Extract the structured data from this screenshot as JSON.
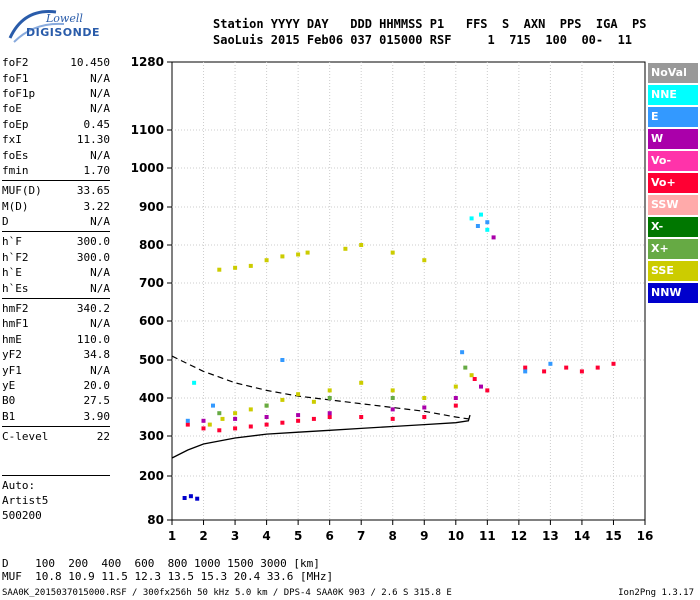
{
  "logo": {
    "top": "Lowell",
    "bottom": "DIGISONDE"
  },
  "header": {
    "line1": "Station YYYY DAY   DDD HHMMSS P1   FFS  S  AXN  PPS  IGA  PS",
    "line2": "SaoLuis 2015 Feb06 037 015000 RSF     1  715  100  00-  11"
  },
  "params": [
    {
      "name": "foF2",
      "value": "10.450"
    },
    {
      "name": "foF1",
      "value": "N/A"
    },
    {
      "name": "foF1p",
      "value": "N/A"
    },
    {
      "name": "foE",
      "value": "N/A"
    },
    {
      "name": "foEp",
      "value": "0.45"
    },
    {
      "name": "fxI",
      "value": "11.30"
    },
    {
      "name": "foEs",
      "value": "N/A"
    },
    {
      "name": "fmin",
      "value": "1.70"
    },
    {
      "name": "MUF(D)",
      "value": "33.65",
      "sep": true
    },
    {
      "name": "M(D)",
      "value": "3.22"
    },
    {
      "name": "D",
      "value": "N/A"
    },
    {
      "name": "h`F",
      "value": "300.0",
      "sep": true
    },
    {
      "name": "h`F2",
      "value": "300.0"
    },
    {
      "name": "h`E",
      "value": "N/A"
    },
    {
      "name": "h`Es",
      "value": "N/A"
    },
    {
      "name": "hmF2",
      "value": "340.2",
      "sep": true
    },
    {
      "name": "hmF1",
      "value": "N/A"
    },
    {
      "name": "hmE",
      "value": "110.0"
    },
    {
      "name": "yF2",
      "value": "34.8"
    },
    {
      "name": "yF1",
      "value": "N/A"
    },
    {
      "name": "yE",
      "value": "20.0"
    },
    {
      "name": "B0",
      "value": "27.5"
    },
    {
      "name": "B1",
      "value": "3.90"
    },
    {
      "name": "C-level",
      "value": "22",
      "sep": true
    }
  ],
  "auto": {
    "line1": "Auto:",
    "line2": "Artist5",
    "line3": "500200"
  },
  "legend": [
    {
      "label": "NoVal",
      "color": "#999999"
    },
    {
      "label": "NNE",
      "color": "#00ffff"
    },
    {
      "label": "E",
      "color": "#3399ff"
    },
    {
      "label": "W",
      "color": "#aa00aa"
    },
    {
      "label": "Vo-",
      "color": "#ff33aa"
    },
    {
      "label": "Vo+",
      "color": "#ff0033"
    },
    {
      "label": "SSW",
      "color": "#ffaaaa"
    },
    {
      "label": "X-",
      "color": "#007700"
    },
    {
      "label": "X+",
      "color": "#66aa44"
    },
    {
      "label": "SSE",
      "color": "#cccc00"
    },
    {
      "label": "NNW",
      "color": "#0000cc"
    }
  ],
  "footer": {
    "line1": "D    100  200  400  600  800 1000 1500 3000 [km]",
    "line2": "MUF  10.8 10.9 11.5 12.3 13.5 15.3 20.4 33.6 [MHz]",
    "line3": "SAA0K_2015037015000.RSF / 300fx256h 50 kHz 5.0 km / DPS-4 SAA0K 903 / 2.6 S 315.8 E",
    "version": "Ion2Png 1.3.17"
  },
  "chart_data": {
    "type": "scatter",
    "x_ticks": [
      1,
      2,
      3,
      4,
      5,
      6,
      7,
      8,
      9,
      10,
      11,
      12,
      13,
      14,
      15,
      16
    ],
    "y_ticks": [
      80,
      200,
      300,
      400,
      500,
      600,
      700,
      800,
      900,
      1000,
      1100,
      1280
    ],
    "xlim": [
      1,
      16
    ],
    "ylim": [
      80,
      1280
    ],
    "grid": true,
    "series": [
      {
        "name": "SSE",
        "color": "#cccc00",
        "points": [
          [
            2.2,
            330
          ],
          [
            2.6,
            345
          ],
          [
            3.0,
            360
          ],
          [
            3.5,
            370
          ],
          [
            4.0,
            380
          ],
          [
            4.5,
            395
          ],
          [
            5.0,
            410
          ],
          [
            5.5,
            390
          ],
          [
            6.0,
            420
          ],
          [
            7.0,
            440
          ],
          [
            8.0,
            420
          ],
          [
            9.0,
            400
          ],
          [
            10.0,
            430
          ],
          [
            10.5,
            460
          ],
          [
            2.5,
            735
          ],
          [
            3.0,
            740
          ],
          [
            3.5,
            745
          ],
          [
            4.0,
            760
          ],
          [
            4.5,
            770
          ],
          [
            5.0,
            775
          ],
          [
            5.3,
            780
          ],
          [
            6.5,
            790
          ],
          [
            7.0,
            800
          ],
          [
            8.0,
            780
          ],
          [
            9.0,
            760
          ]
        ]
      },
      {
        "name": "Vo+",
        "color": "#ff0033",
        "points": [
          [
            1.5,
            330
          ],
          [
            2.0,
            320
          ],
          [
            2.5,
            315
          ],
          [
            3.0,
            320
          ],
          [
            3.5,
            325
          ],
          [
            4.0,
            330
          ],
          [
            4.5,
            335
          ],
          [
            5.0,
            340
          ],
          [
            5.5,
            345
          ],
          [
            6.0,
            350
          ],
          [
            7.0,
            350
          ],
          [
            8.0,
            345
          ],
          [
            9.0,
            350
          ],
          [
            10.0,
            380
          ],
          [
            10.6,
            450
          ],
          [
            11.0,
            420
          ],
          [
            12.2,
            480
          ],
          [
            12.8,
            470
          ],
          [
            13.5,
            480
          ],
          [
            14.0,
            470
          ],
          [
            14.5,
            480
          ],
          [
            15.0,
            490
          ]
        ]
      },
      {
        "name": "W",
        "color": "#aa00aa",
        "points": [
          [
            2.0,
            340
          ],
          [
            3.0,
            345
          ],
          [
            4.0,
            350
          ],
          [
            5.0,
            355
          ],
          [
            6.0,
            360
          ],
          [
            8.0,
            370
          ],
          [
            9.0,
            375
          ],
          [
            10.0,
            400
          ],
          [
            10.8,
            430
          ],
          [
            11.2,
            820
          ]
        ]
      },
      {
        "name": "E",
        "color": "#3399ff",
        "points": [
          [
            1.5,
            340
          ],
          [
            2.3,
            380
          ],
          [
            4.5,
            500
          ],
          [
            10.2,
            520
          ],
          [
            10.7,
            850
          ],
          [
            11.0,
            860
          ],
          [
            12.2,
            470
          ],
          [
            13.0,
            490
          ]
        ]
      },
      {
        "name": "NNE",
        "color": "#00ffff",
        "points": [
          [
            10.5,
            870
          ],
          [
            10.8,
            880
          ],
          [
            11.0,
            840
          ],
          [
            1.7,
            440
          ]
        ]
      },
      {
        "name": "NNW",
        "color": "#0000cc",
        "points": [
          [
            1.4,
            140
          ],
          [
            1.6,
            145
          ],
          [
            1.8,
            138
          ]
        ]
      },
      {
        "name": "X+",
        "color": "#66aa44",
        "points": [
          [
            2.5,
            360
          ],
          [
            4.0,
            380
          ],
          [
            6.0,
            400
          ],
          [
            8.0,
            400
          ],
          [
            10.3,
            480
          ]
        ]
      }
    ],
    "profile_solid": [
      [
        1,
        245
      ],
      [
        1.5,
        265
      ],
      [
        2,
        280
      ],
      [
        3,
        295
      ],
      [
        4,
        305
      ],
      [
        5,
        310
      ],
      [
        6,
        315
      ],
      [
        7,
        320
      ],
      [
        8,
        325
      ],
      [
        9,
        330
      ],
      [
        10,
        335
      ],
      [
        10.4,
        340
      ],
      [
        10.45,
        355
      ]
    ],
    "profile_dashed": [
      [
        1,
        510
      ],
      [
        1.5,
        490
      ],
      [
        2,
        470
      ],
      [
        3,
        440
      ],
      [
        4,
        420
      ],
      [
        5,
        405
      ],
      [
        6,
        395
      ],
      [
        7,
        385
      ],
      [
        8,
        375
      ],
      [
        9,
        365
      ],
      [
        10,
        350
      ],
      [
        10.4,
        345
      ]
    ]
  }
}
